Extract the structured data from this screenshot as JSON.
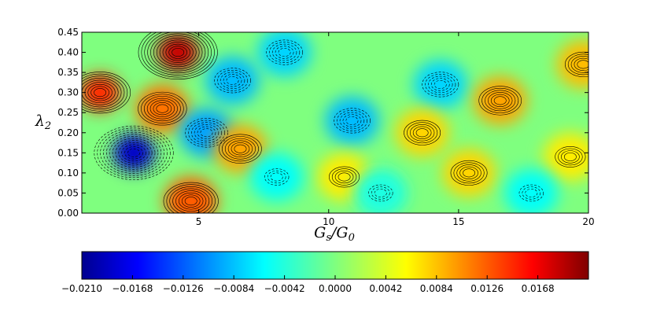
{
  "chart_data": [
    {
      "type": "heatmap",
      "title": "",
      "xlabel": "G_s/G_0",
      "ylabel": "λ_2",
      "xlim": [
        0.5,
        20
      ],
      "ylim": [
        0,
        0.45
      ],
      "x_ticks": [
        5,
        10,
        15,
        20
      ],
      "y_ticks": [
        "0.00",
        "0.05",
        "0.10",
        "0.15",
        "0.20",
        "0.25",
        "0.30",
        "0.35",
        "0.40",
        "0.45"
      ],
      "overlay": "contour lines (solid for positive, dashed for negative)",
      "z_range": [
        -0.021,
        0.021
      ],
      "colormap": "jet",
      "features": [
        {
          "x": 2.5,
          "y": 0.15,
          "value": -0.018
        },
        {
          "x": 1.2,
          "y": 0.3,
          "value": 0.014
        },
        {
          "x": 3.6,
          "y": 0.26,
          "value": 0.011
        },
        {
          "x": 4.7,
          "y": 0.03,
          "value": 0.012
        },
        {
          "x": 4.2,
          "y": 0.4,
          "value": 0.018
        },
        {
          "x": 5.3,
          "y": 0.2,
          "value": -0.009
        },
        {
          "x": 6.6,
          "y": 0.16,
          "value": 0.009
        },
        {
          "x": 6.3,
          "y": 0.33,
          "value": -0.008
        },
        {
          "x": 8.3,
          "y": 0.4,
          "value": -0.007
        },
        {
          "x": 10.9,
          "y": 0.23,
          "value": -0.008
        },
        {
          "x": 10.6,
          "y": 0.09,
          "value": 0.006
        },
        {
          "x": 14.3,
          "y": 0.32,
          "value": -0.007
        },
        {
          "x": 13.6,
          "y": 0.2,
          "value": 0.007
        },
        {
          "x": 15.4,
          "y": 0.1,
          "value": 0.007
        },
        {
          "x": 16.6,
          "y": 0.28,
          "value": 0.009
        },
        {
          "x": 19.3,
          "y": 0.14,
          "value": 0.006
        },
        {
          "x": 19.8,
          "y": 0.37,
          "value": 0.008
        },
        {
          "x": 17.8,
          "y": 0.05,
          "value": -0.005
        },
        {
          "x": 12.0,
          "y": 0.05,
          "value": -0.004
        },
        {
          "x": 8.0,
          "y": 0.09,
          "value": -0.005
        }
      ]
    },
    {
      "type": "colorbar",
      "range": [
        -0.021,
        0.021
      ],
      "ticks": [
        "−0.0210",
        "−0.0168",
        "−0.0126",
        "−0.0084",
        "−0.0042",
        "0.0000",
        "0.0042",
        "0.0084",
        "0.0126",
        "0.0168"
      ],
      "tick_values": [
        -0.021,
        -0.0168,
        -0.0126,
        -0.0084,
        -0.0042,
        0.0,
        0.0042,
        0.0084,
        0.0126,
        0.0168
      ],
      "colormap": "jet"
    }
  ]
}
